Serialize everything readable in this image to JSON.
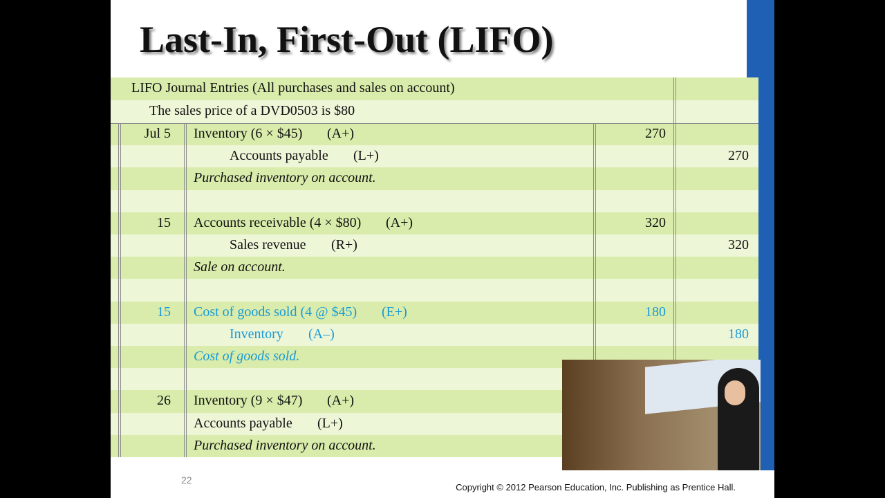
{
  "title": "Last-In, First-Out (LIFO)",
  "table": {
    "heading": [
      "LIFO Journal Entries (All purchases and sales on account)",
      "The sales price of a DVD0503 is $80"
    ],
    "entries": [
      {
        "date": "Jul  5",
        "highlight": false,
        "lines": [
          {
            "account": "Inventory (6 × $45)",
            "tag": "(A+)",
            "debit": "270"
          },
          {
            "account": "Accounts payable",
            "tag": "(L+)",
            "credit": "270"
          }
        ],
        "explanation": "Purchased inventory on account."
      },
      {
        "date": "15",
        "highlight": false,
        "lines": [
          {
            "account": "Accounts receivable (4 × $80)",
            "tag": "(A+)",
            "debit": "320"
          },
          {
            "account": "Sales revenue",
            "tag": "(R+)",
            "credit": "320"
          }
        ],
        "explanation": "Sale on account."
      },
      {
        "date": "15",
        "highlight": true,
        "lines": [
          {
            "account": "Cost of goods sold (4 @ $45)",
            "tag": "(E+)",
            "debit": "180"
          },
          {
            "account": "Inventory",
            "tag": "(A–)",
            "credit": "180"
          }
        ],
        "explanation": "Cost of goods sold."
      },
      {
        "date": "26",
        "highlight": false,
        "lines": [
          {
            "account": "Inventory (9 × $47)",
            "tag": "(A+)"
          },
          {
            "account": "Accounts payable",
            "tag": "(L+)"
          }
        ],
        "explanation": "Purchased inventory on account."
      }
    ]
  },
  "footer": {
    "page": "22",
    "copyright": "Copyright © 2012 Pearson Education, Inc. Publishing as Prentice Hall."
  }
}
